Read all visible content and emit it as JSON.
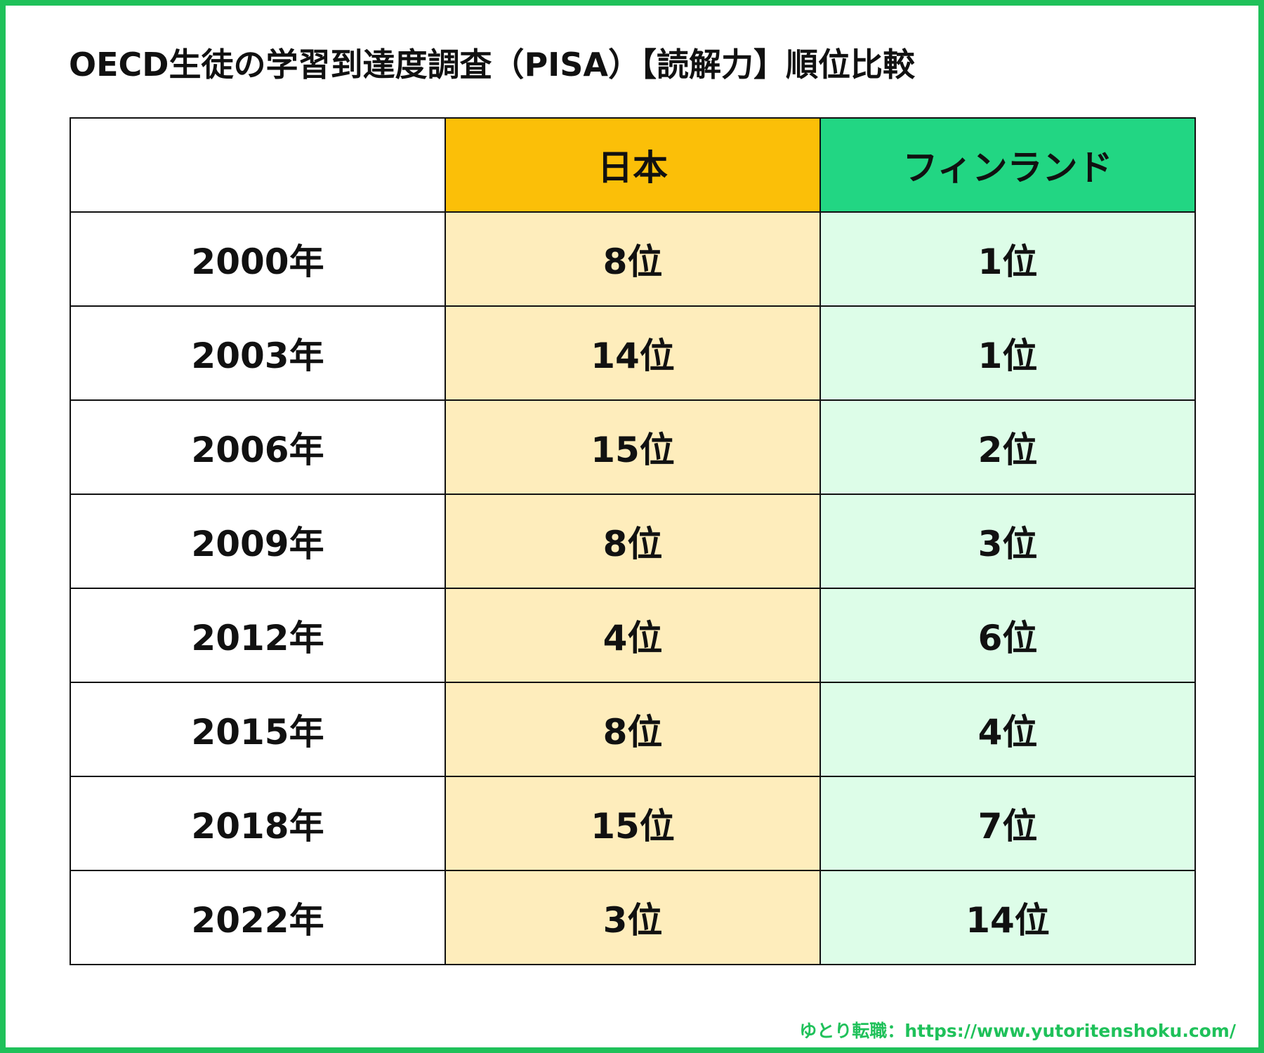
{
  "title": "OECD生徒の学習到達度調査（PISA）【読解力】順位比較",
  "footer": "ゆとり転職：https://www.yutoritenshoku.com/",
  "colors": {
    "border": "#1fc15a",
    "japan_header": "#fbbf08",
    "japan_cell": "#feedbc",
    "finland_header": "#22d683",
    "finland_cell": "#ddfde8"
  },
  "chart_data": {
    "type": "table",
    "columns": [
      "",
      "日本",
      "フィンランド"
    ],
    "rows": [
      {
        "year": "2000年",
        "japan": "8位",
        "finland": "1位"
      },
      {
        "year": "2003年",
        "japan": "14位",
        "finland": "1位"
      },
      {
        "year": "2006年",
        "japan": "15位",
        "finland": "2位"
      },
      {
        "year": "2009年",
        "japan": "8位",
        "finland": "3位"
      },
      {
        "year": "2012年",
        "japan": "4位",
        "finland": "6位"
      },
      {
        "year": "2015年",
        "japan": "8位",
        "finland": "4位"
      },
      {
        "year": "2018年",
        "japan": "15位",
        "finland": "7位"
      },
      {
        "year": "2022年",
        "japan": "3位",
        "finland": "14位"
      }
    ]
  }
}
